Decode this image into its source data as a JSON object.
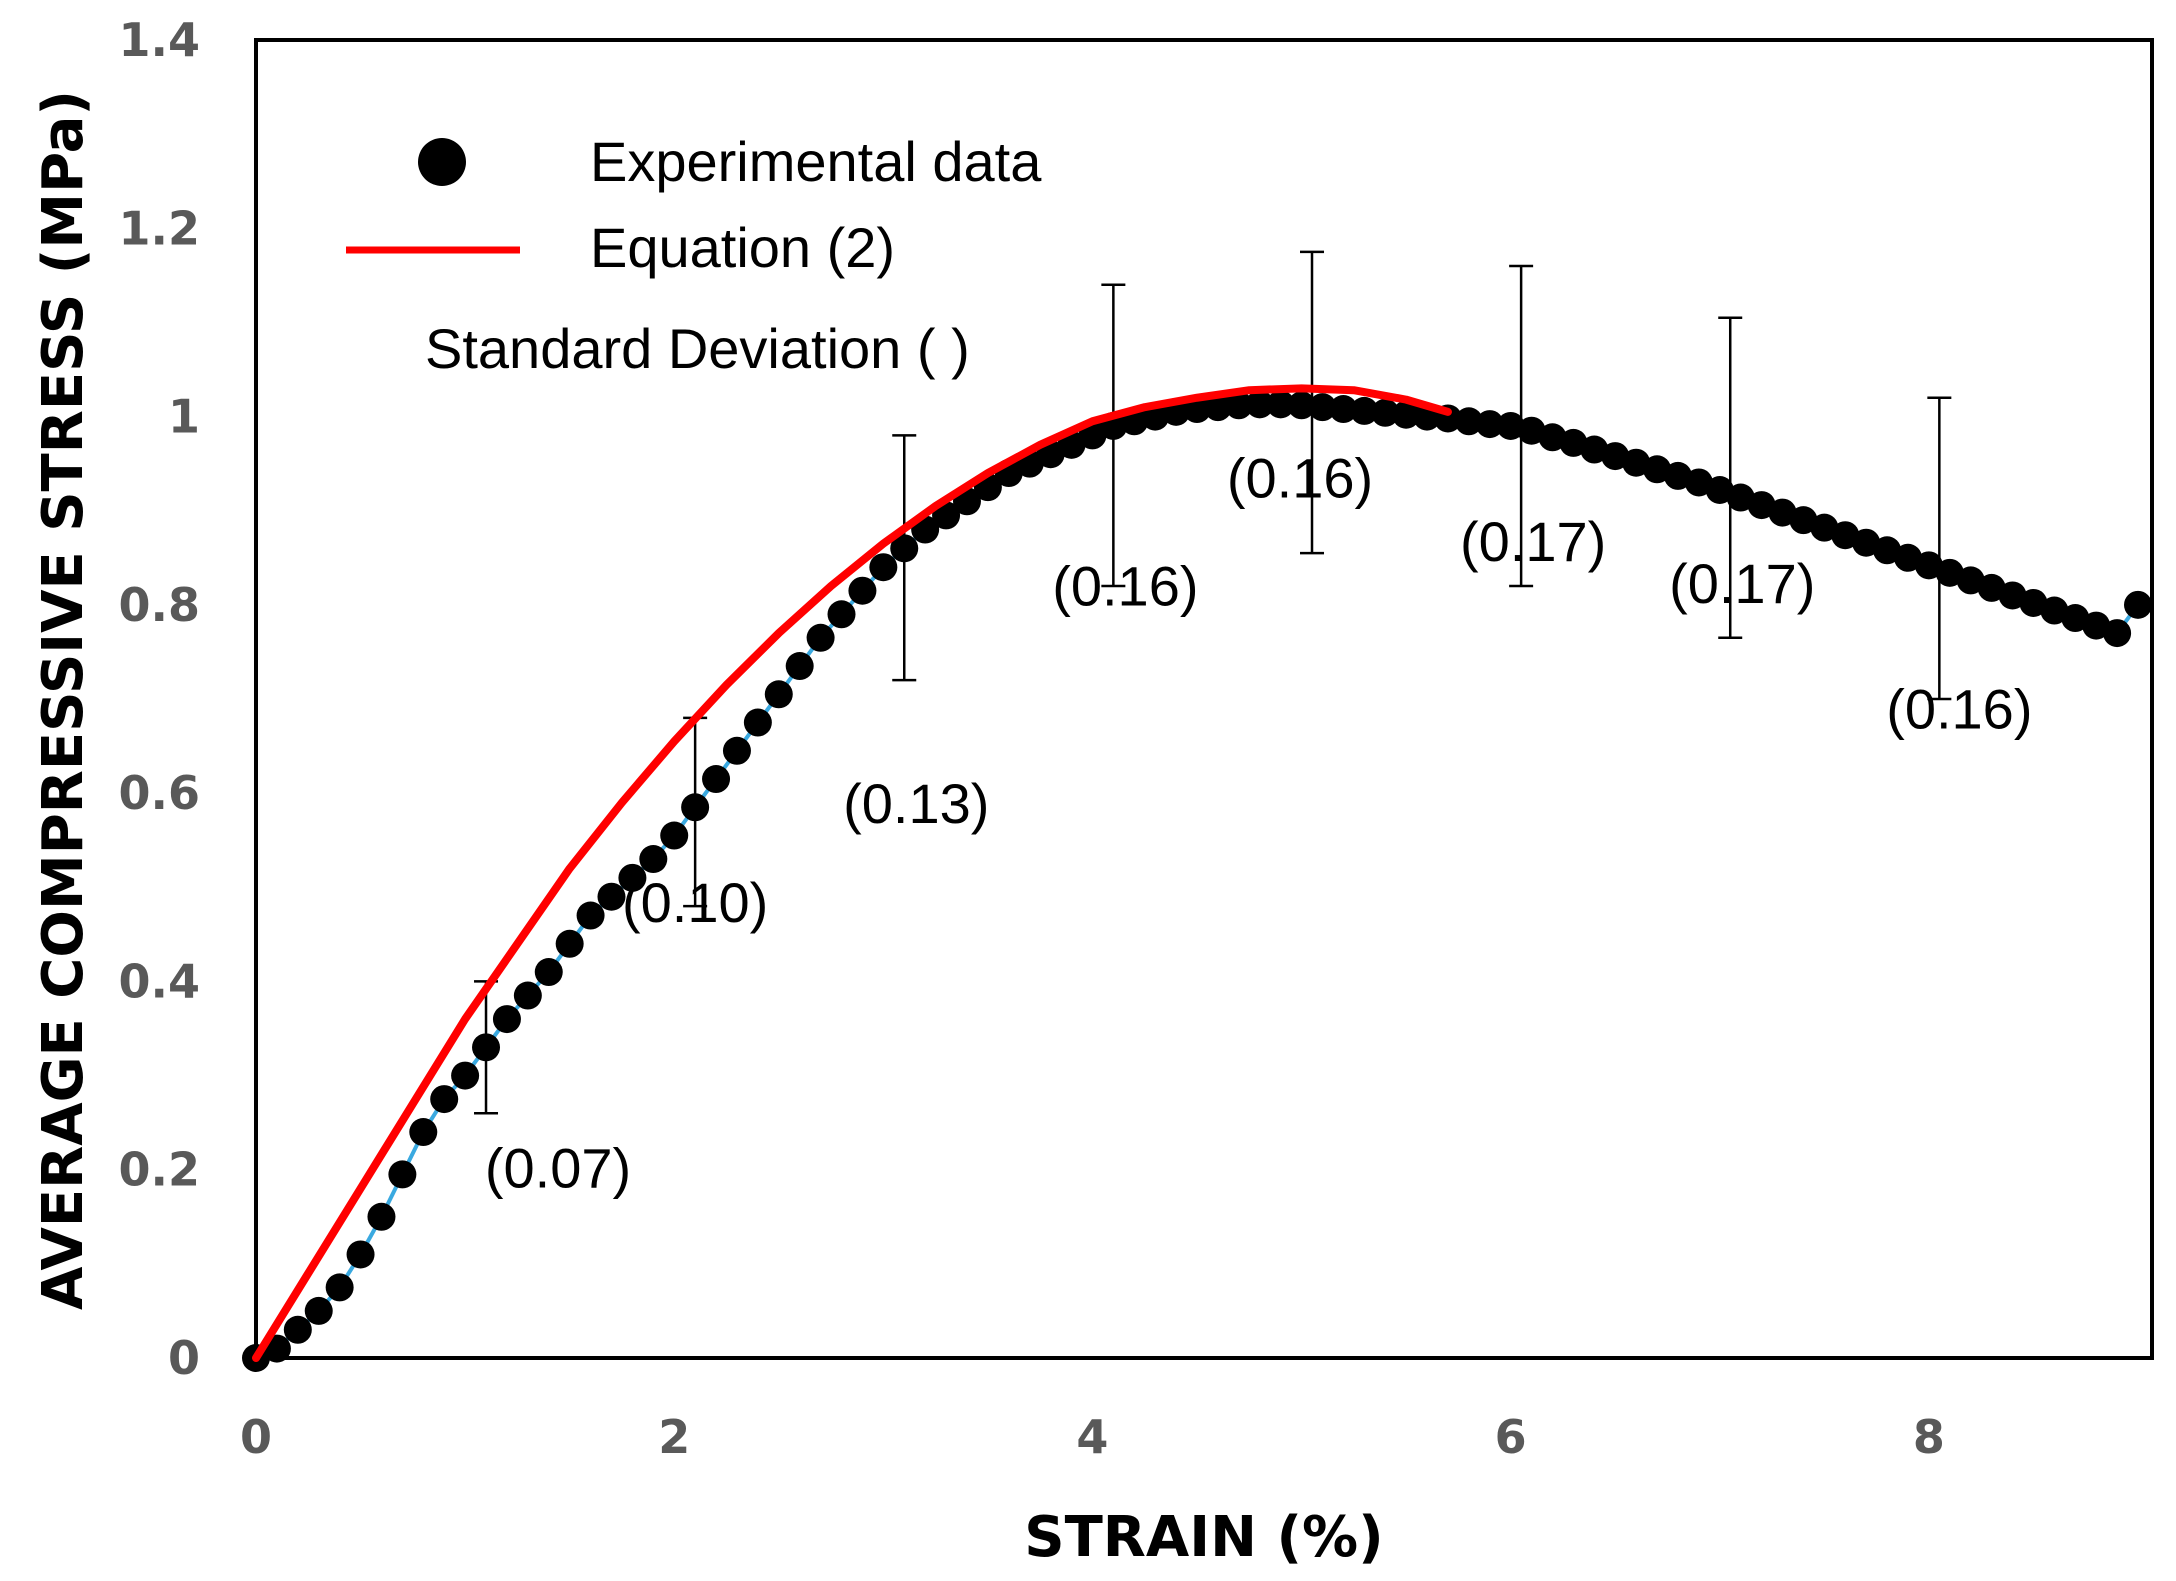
{
  "chart_data": {
    "type": "scatter",
    "xlabel": "STRAIN (%)",
    "ylabel": "AVERAGE COMPRESSIVE STRESS (MPa)",
    "xlim": [
      0,
      9
    ],
    "ylim": [
      0,
      1.4
    ],
    "xticks": [
      "0",
      "2",
      "4",
      "6",
      "8"
    ],
    "xtick_values": [
      0,
      2,
      4,
      6,
      8
    ],
    "yticks": [
      "0",
      "0.2",
      "0.4",
      "0.6",
      "0.8",
      "1",
      "1.2",
      "1.4"
    ],
    "ytick_values": [
      0,
      0.2,
      0.4,
      0.6,
      0.8,
      1.0,
      1.2,
      1.4
    ],
    "grid": false,
    "legend": {
      "placement": "top-left",
      "entries": [
        {
          "label": "Experimental data",
          "marker": "circle"
        },
        {
          "label": "Equation (2)",
          "marker": "line"
        },
        {
          "label": "Standard Deviation ( )",
          "marker": "none"
        }
      ]
    },
    "series": [
      {
        "name": "Experimental data",
        "style": "markers",
        "color": "#000000",
        "x": [
          0,
          0.1,
          0.2,
          0.3,
          0.4,
          0.5,
          0.6,
          0.7,
          0.8,
          0.9,
          1.0,
          1.1,
          1.2,
          1.3,
          1.4,
          1.5,
          1.6,
          1.7,
          1.8,
          1.9,
          2.0,
          2.1,
          2.2,
          2.3,
          2.4,
          2.5,
          2.6,
          2.7,
          2.8,
          2.9,
          3.0,
          3.1,
          3.2,
          3.3,
          3.4,
          3.5,
          3.6,
          3.7,
          3.8,
          3.9,
          4.0,
          4.1,
          4.2,
          4.3,
          4.4,
          4.5,
          4.6,
          4.7,
          4.8,
          4.9,
          5.0,
          5.1,
          5.2,
          5.3,
          5.4,
          5.5,
          5.6,
          5.7,
          5.8,
          5.9,
          6.0,
          6.1,
          6.2,
          6.3,
          6.4,
          6.5,
          6.6,
          6.7,
          6.8,
          6.9,
          7.0,
          7.1,
          7.2,
          7.3,
          7.4,
          7.5,
          7.6,
          7.7,
          7.8,
          7.9,
          8.0,
          8.1,
          8.2,
          8.3,
          8.4,
          8.5,
          8.6,
          8.7,
          8.8,
          8.9,
          9.0
        ],
        "y": [
          0,
          0.01,
          0.03,
          0.05,
          0.075,
          0.11,
          0.15,
          0.195,
          0.24,
          0.275,
          0.3,
          0.33,
          0.36,
          0.385,
          0.41,
          0.44,
          0.47,
          0.49,
          0.51,
          0.53,
          0.555,
          0.585,
          0.615,
          0.645,
          0.675,
          0.705,
          0.735,
          0.765,
          0.79,
          0.815,
          0.84,
          0.86,
          0.88,
          0.895,
          0.91,
          0.925,
          0.94,
          0.95,
          0.96,
          0.97,
          0.98,
          0.99,
          0.995,
          1.0,
          1.005,
          1.008,
          1.01,
          1.012,
          1.013,
          1.013,
          1.012,
          1.01,
          1.008,
          1.006,
          1.004,
          1.002,
          1.0,
          0.998,
          0.995,
          0.992,
          0.99,
          0.985,
          0.978,
          0.972,
          0.965,
          0.958,
          0.951,
          0.944,
          0.937,
          0.93,
          0.922,
          0.914,
          0.906,
          0.898,
          0.89,
          0.882,
          0.874,
          0.866,
          0.858,
          0.85,
          0.842,
          0.834,
          0.826,
          0.818,
          0.81,
          0.802,
          0.794,
          0.786,
          0.778,
          0.77,
          0.8
        ]
      },
      {
        "name": "Equation (2)",
        "style": "line",
        "color": "#ff0000",
        "x": [
          0,
          0.25,
          0.5,
          0.75,
          1.0,
          1.25,
          1.5,
          1.75,
          2.0,
          2.25,
          2.5,
          2.75,
          3.0,
          3.25,
          3.5,
          3.75,
          4.0,
          4.25,
          4.5,
          4.75,
          5.0,
          5.25,
          5.5,
          5.7
        ],
        "y": [
          0,
          0.09,
          0.18,
          0.27,
          0.36,
          0.44,
          0.52,
          0.59,
          0.655,
          0.715,
          0.77,
          0.82,
          0.865,
          0.905,
          0.94,
          0.97,
          0.995,
          1.01,
          1.02,
          1.028,
          1.03,
          1.028,
          1.018,
          1.005
        ]
      },
      {
        "name": "Standard Deviation",
        "style": "errorbars",
        "color": "#000000",
        "points": [
          {
            "x": 1.1,
            "y": 0.33,
            "sd": 0.07,
            "label": "(0.07)"
          },
          {
            "x": 2.1,
            "y": 0.58,
            "sd": 0.1,
            "label": "(0.10)"
          },
          {
            "x": 3.1,
            "y": 0.85,
            "sd": 0.13,
            "label": "(0.13)"
          },
          {
            "x": 4.1,
            "y": 0.98,
            "sd": 0.16,
            "label": "(0.16)"
          },
          {
            "x": 5.05,
            "y": 1.015,
            "sd": 0.16,
            "label": "(0.16)"
          },
          {
            "x": 6.05,
            "y": 0.99,
            "sd": 0.17,
            "label": "(0.17)"
          },
          {
            "x": 7.05,
            "y": 0.935,
            "sd": 0.17,
            "label": "(0.17)"
          },
          {
            "x": 8.05,
            "y": 0.86,
            "sd": 0.16,
            "label": "(0.16)"
          }
        ]
      }
    ]
  },
  "colors": {
    "axis": "#000000",
    "tick_label": "#595959",
    "marker": "#000000",
    "connector": "#3aa9e0",
    "equation_line": "#ff0000"
  }
}
